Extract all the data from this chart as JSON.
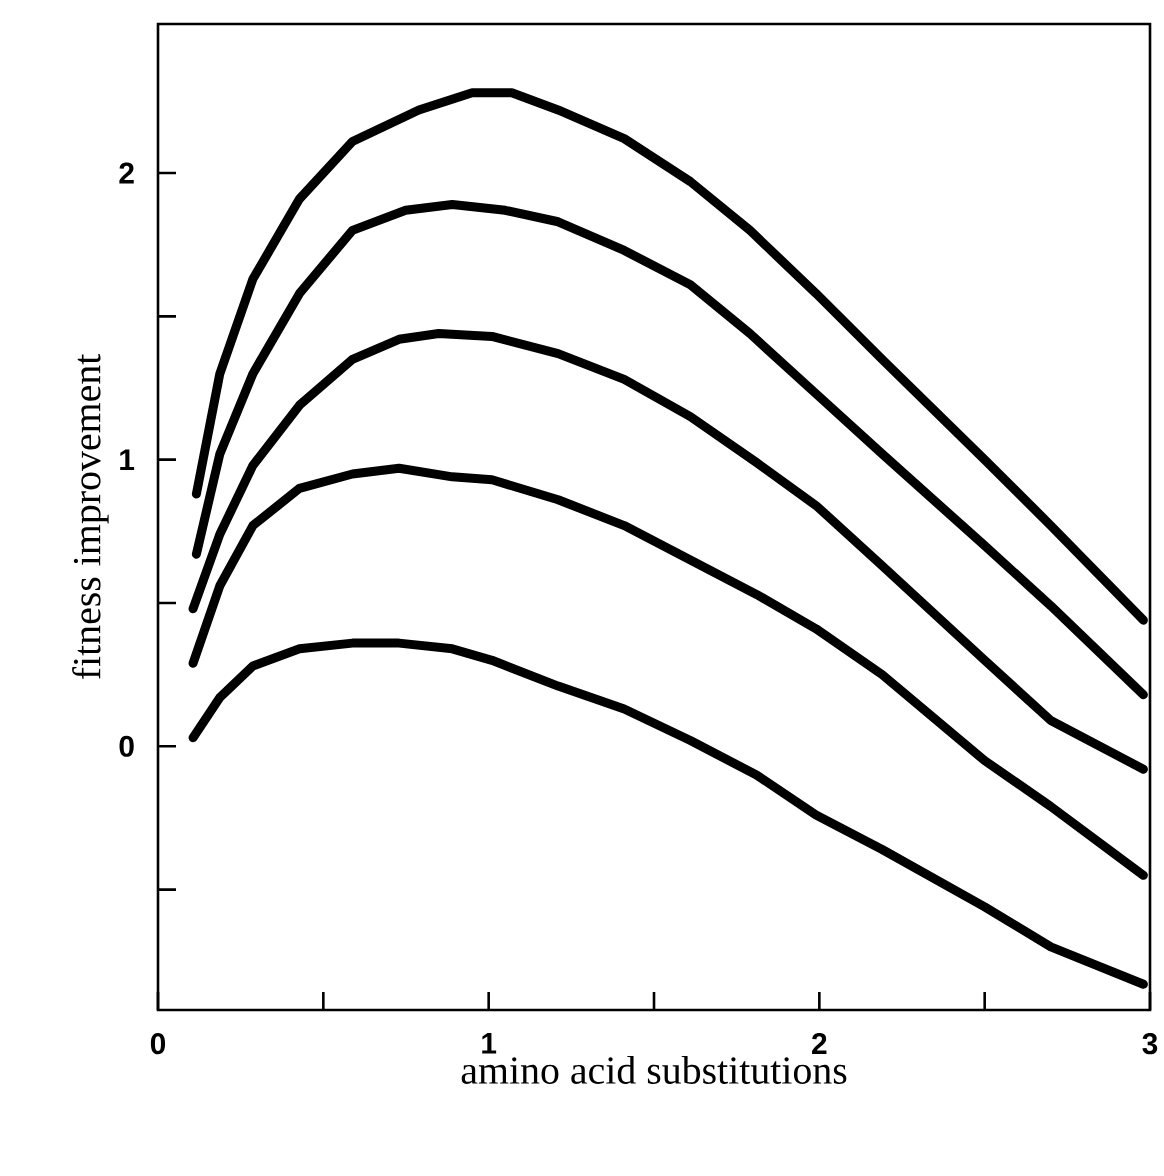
{
  "chart_data": {
    "type": "line",
    "xlabel": "amino acid substitutions",
    "ylabel": "fitness improvement",
    "xlim": [
      0,
      3
    ],
    "ylim": [
      -0.92,
      2.52
    ],
    "xticks": [
      0,
      {
        "value": 0.5,
        "label": null
      },
      1,
      {
        "value": 1.5,
        "label": null
      },
      2,
      {
        "value": 2.5,
        "label": null
      },
      3
    ],
    "yticks": [
      {
        "value": -0.5,
        "label": null
      },
      0,
      {
        "value": 0.5,
        "label": null
      },
      1,
      {
        "value": 1.5,
        "label": null
      },
      2
    ],
    "line_style": "solid",
    "series": [
      {
        "color": "#000000",
        "x": [
          0.116,
          0.187,
          0.287,
          0.428,
          0.588,
          0.789,
          0.95,
          1.07,
          1.21,
          1.41,
          1.61,
          1.79,
          1.99,
          2.19,
          2.5,
          2.7,
          2.98
        ],
        "values": [
          0.88,
          1.3,
          1.63,
          1.91,
          2.11,
          2.22,
          2.28,
          2.28,
          2.22,
          2.12,
          1.97,
          1.8,
          1.58,
          1.35,
          1.0,
          0.77,
          0.44
        ]
      },
      {
        "color": "#000000",
        "x": [
          0.116,
          0.187,
          0.287,
          0.428,
          0.588,
          0.749,
          0.89,
          1.05,
          1.21,
          1.41,
          1.61,
          1.79,
          1.99,
          2.19,
          2.5,
          2.7,
          2.98
        ],
        "values": [
          0.67,
          1.02,
          1.3,
          1.58,
          1.8,
          1.87,
          1.89,
          1.87,
          1.83,
          1.73,
          1.61,
          1.44,
          1.23,
          1.02,
          0.7,
          0.49,
          0.18
        ]
      },
      {
        "color": "#000000",
        "x": [
          0.106,
          0.187,
          0.287,
          0.428,
          0.588,
          0.729,
          0.849,
          1.01,
          1.21,
          1.41,
          1.61,
          1.81,
          1.99,
          2.19,
          2.5,
          2.7,
          2.98
        ],
        "values": [
          0.48,
          0.74,
          0.98,
          1.19,
          1.35,
          1.42,
          1.44,
          1.43,
          1.37,
          1.28,
          1.15,
          0.99,
          0.84,
          0.63,
          0.3,
          0.09,
          -0.08
        ]
      },
      {
        "color": "#000000",
        "x": [
          0.106,
          0.187,
          0.287,
          0.428,
          0.588,
          0.729,
          0.89,
          1.01,
          1.21,
          1.41,
          1.61,
          1.81,
          1.99,
          2.19,
          2.5,
          2.7,
          2.98
        ],
        "values": [
          0.29,
          0.56,
          0.77,
          0.9,
          0.95,
          0.97,
          0.94,
          0.93,
          0.86,
          0.77,
          0.65,
          0.53,
          0.41,
          0.25,
          -0.05,
          -0.21,
          -0.45
        ]
      },
      {
        "color": "#000000",
        "x": [
          0.106,
          0.187,
          0.287,
          0.428,
          0.588,
          0.729,
          0.89,
          1.01,
          1.21,
          1.41,
          1.61,
          1.81,
          1.99,
          2.19,
          2.5,
          2.7,
          2.98
        ],
        "values": [
          0.03,
          0.17,
          0.28,
          0.34,
          0.36,
          0.36,
          0.34,
          0.3,
          0.21,
          0.13,
          0.02,
          -0.1,
          -0.24,
          -0.36,
          -0.56,
          -0.7,
          -0.83
        ]
      }
    ]
  }
}
